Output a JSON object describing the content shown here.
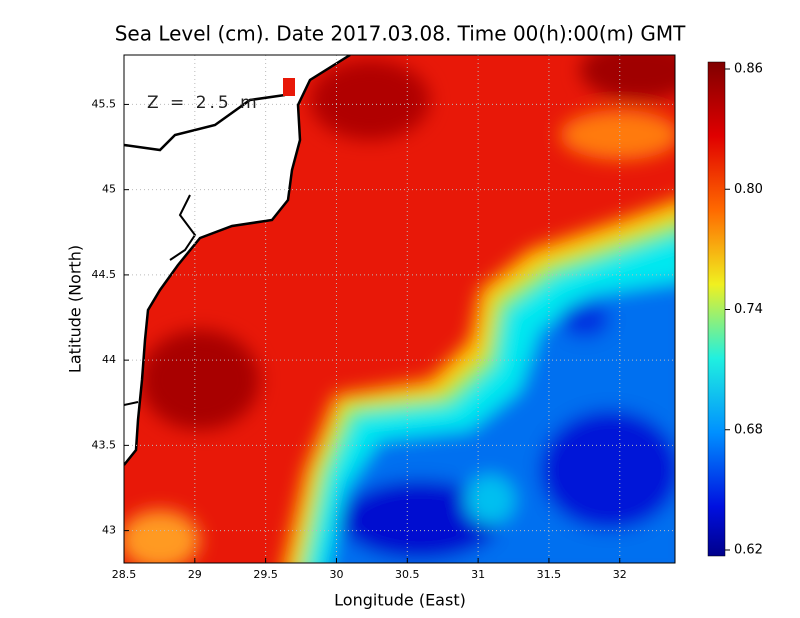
{
  "chart_data": {
    "type": "heatmap",
    "title": "Sea Level (cm). Date 2017.03.08. Time 00(h):00(m) GMT",
    "xlabel": "Longitude (East)",
    "ylabel": "Latitude (North)",
    "annotation": "Z = 2.5 m",
    "xlim": [
      28.5,
      32.39
    ],
    "xticks": [
      28.5,
      29,
      29.5,
      30,
      30.5,
      31,
      31.5,
      32
    ],
    "ylim": [
      42.81,
      45.79
    ],
    "yticks": [
      43,
      43.5,
      44,
      44.5,
      45,
      45.5
    ],
    "grid": true,
    "colorbar": {
      "lim": [
        0.62,
        0.86
      ],
      "ticks": [
        0.62,
        0.68,
        0.74,
        {
          "value": 0.8,
          "label": "0.80"
        },
        0.86
      ]
    }
  }
}
